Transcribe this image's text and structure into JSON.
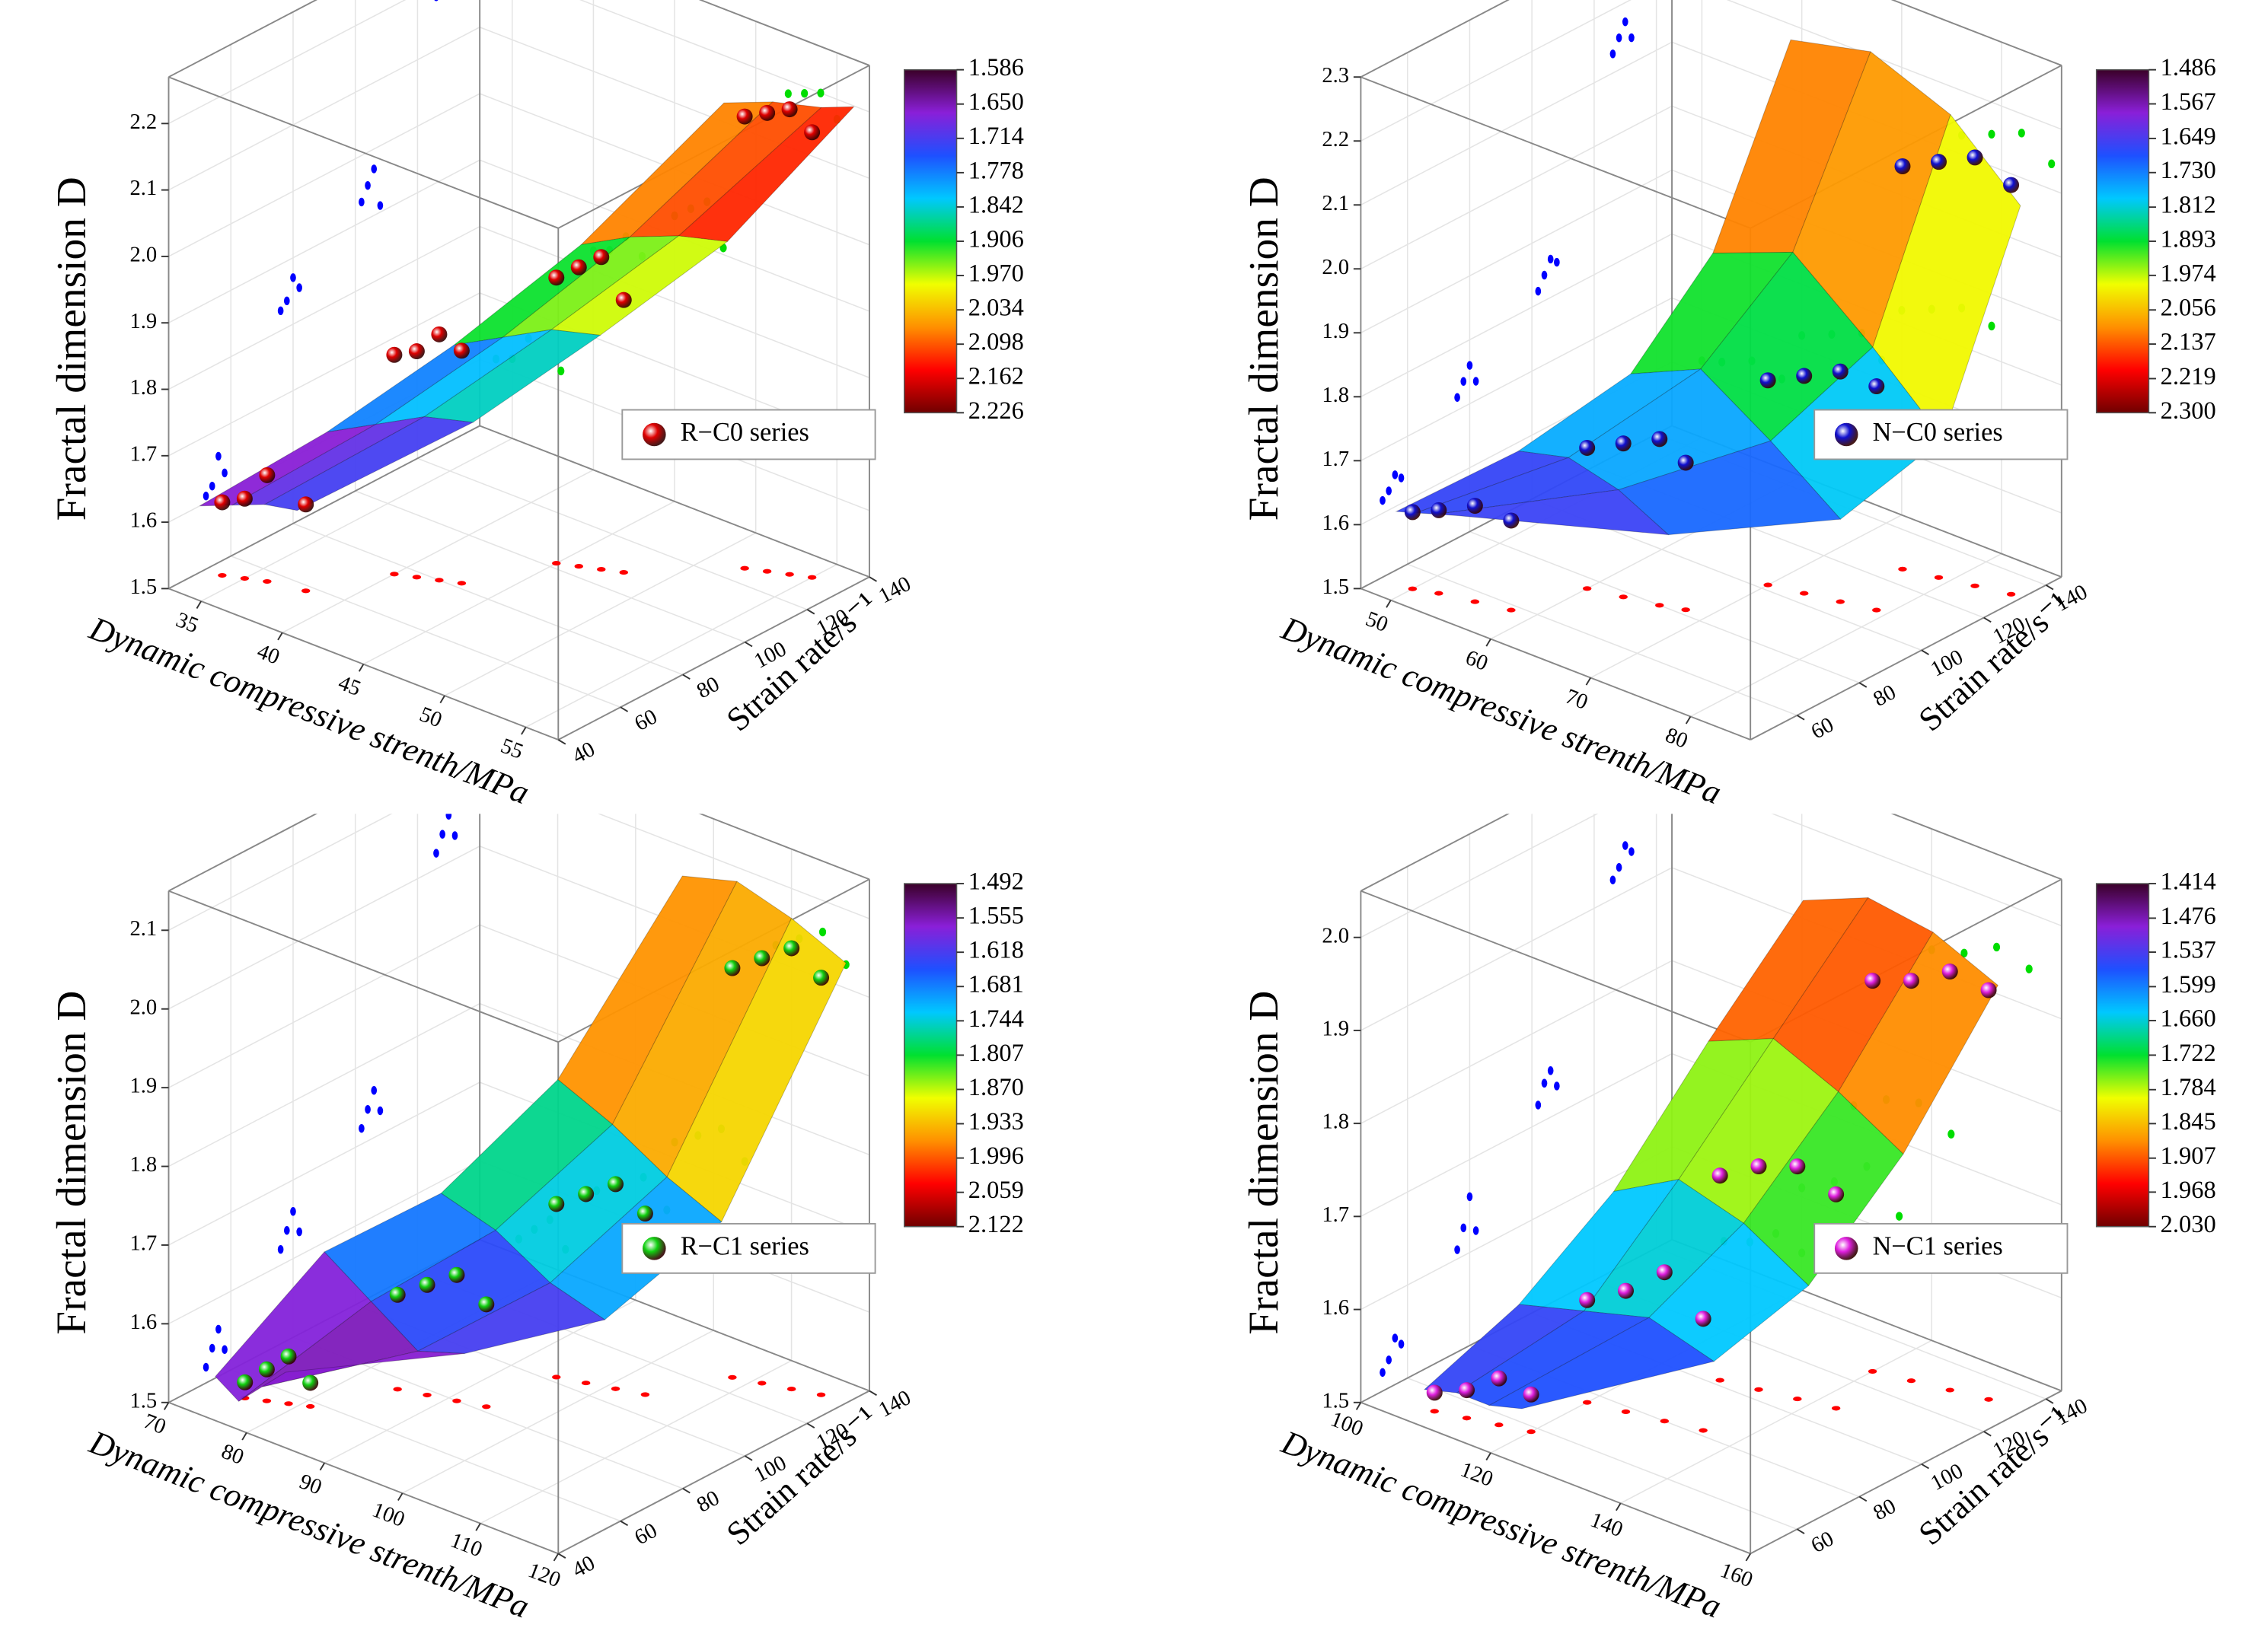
{
  "chart_data": [
    {
      "type": "surface3d",
      "zlabel": "Fractal dimension D",
      "xlabel": "Dynamic compressive strenth/MPa",
      "ylabel": "Strain rate/s⁻¹",
      "xlim": [
        33,
        57
      ],
      "ylim": [
        40,
        140
      ],
      "zlim": [
        1.5,
        2.27
      ],
      "xticks": [
        35,
        40,
        45,
        50,
        55
      ],
      "yticks": [
        40,
        60,
        80,
        100,
        120,
        140
      ],
      "zticks": [
        1.5,
        1.6,
        1.7,
        1.8,
        1.9,
        {
          "value": 2,
          "label": "2.0"
        },
        2.1,
        2.2
      ],
      "colorbar_ticks": [
        1.586,
        {
          "value": 1.65,
          "label": "1.650"
        },
        1.714,
        1.778,
        1.842,
        1.906,
        {
          "value": 1.97,
          "label": "1.970"
        },
        2.034,
        2.098,
        2.162,
        2.226
      ],
      "colormap": [
        "#3a0028",
        "#8a1fd8",
        "#1e50ff",
        "#00c8ff",
        "#00e030",
        "#f0ff00",
        "#ff9000",
        "#ff0000",
        "#700000"
      ],
      "grid": true,
      "legend": "right",
      "projection_colors": {
        "floor": "#ff0000",
        "left": "#0000ff",
        "right": "#00dd00"
      },
      "series": [
        {
          "name": "R−C0 series",
          "color": "#e00000",
          "x": [
            34,
            35,
            36,
            38,
            40,
            41,
            42,
            43,
            45,
            46,
            47,
            48,
            52,
            53,
            54,
            55
          ],
          "y": [
            52,
            54,
            56,
            58,
            76,
            78,
            80,
            82,
            102,
            104,
            106,
            108,
            126,
            128,
            130,
            132
          ],
          "z": [
            1.61,
            1.62,
            1.66,
            1.63,
            1.83,
            1.84,
            1.87,
            1.85,
            1.93,
            1.95,
            1.97,
            1.91,
            2.18,
            2.19,
            2.2,
            2.17
          ]
        }
      ],
      "surface": {
        "y": [
          50,
          70,
          90,
          110,
          135
        ],
        "x": [
          [
            33,
            35,
            37,
            39
          ],
          [
            37,
            40,
            43,
            46
          ],
          [
            41,
            44,
            47,
            50
          ],
          [
            45,
            48,
            51,
            54
          ],
          [
            49,
            52,
            55,
            57
          ]
        ],
        "z": [
          [
            1.6,
            1.62,
            1.64,
            1.65
          ],
          [
            1.7,
            1.74,
            1.78,
            1.8
          ],
          [
            1.82,
            1.86,
            1.9,
            1.92
          ],
          [
            1.96,
            2.0,
            2.03,
            2.05
          ],
          [
            2.15,
            2.18,
            2.2,
            2.22
          ]
        ]
      }
    },
    {
      "type": "surface3d",
      "zlabel": "Fractal dimension D",
      "xlabel": "Dynamic compressive strenth/MPa",
      "ylabel": "Strain rate/s⁻¹",
      "xlim": [
        47,
        86
      ],
      "ylim": [
        45,
        145
      ],
      "zlim": [
        1.5,
        2.3
      ],
      "xticks": [
        50,
        60,
        70,
        80
      ],
      "yticks": [
        60,
        80,
        100,
        120,
        140
      ],
      "zticks": [
        1.5,
        1.6,
        1.7,
        1.8,
        1.9,
        {
          "value": 2,
          "label": "2.0"
        },
        2.1,
        2.2,
        2.3
      ],
      "colorbar_ticks": [
        1.486,
        1.567,
        1.649,
        {
          "value": 1.73,
          "label": "1.730"
        },
        1.812,
        1.893,
        1.974,
        2.056,
        2.137,
        2.219,
        {
          "value": 2.3,
          "label": "2.300"
        }
      ],
      "colormap": [
        "#3a0028",
        "#8a1fd8",
        "#1e50ff",
        "#00c8ff",
        "#00e030",
        "#f0ff00",
        "#ff9000",
        "#ff0000",
        "#700000"
      ],
      "grid": true,
      "legend": "right",
      "projection_colors": {
        "floor": "#ff0000",
        "left": "#0000ff",
        "right": "#00dd00"
      },
      "series": [
        {
          "name": "N−C0 series",
          "color": "#1010d0",
          "x": [
            50,
            52,
            55,
            58,
            60,
            63,
            66,
            68,
            70,
            73,
            76,
            79,
            76,
            79,
            82,
            85
          ],
          "y": [
            52,
            54,
            56,
            58,
            76,
            78,
            80,
            82,
            102,
            104,
            106,
            108,
            126,
            128,
            130,
            132
          ],
          "z": [
            1.62,
            1.63,
            1.65,
            1.64,
            1.72,
            1.74,
            1.76,
            1.73,
            1.82,
            1.84,
            1.86,
            1.85,
            2.13,
            2.15,
            2.17,
            2.14
          ]
        }
      ],
      "surface": {
        "y": [
          50,
          70,
          90,
          110,
          135
        ],
        "x": [
          [
            49,
            51,
            53,
            55
          ],
          [
            55,
            60,
            65,
            70
          ],
          [
            60,
            67,
            74,
            81
          ],
          [
            62,
            70,
            78,
            85
          ],
          [
            62,
            70,
            78,
            85
          ]
        ],
        "z": [
          [
            1.62,
            1.63,
            1.64,
            1.65
          ],
          [
            1.7,
            1.72,
            1.7,
            1.66
          ],
          [
            1.8,
            1.85,
            1.78,
            1.7
          ],
          [
            1.95,
            2.0,
            1.9,
            1.8
          ],
          [
            2.22,
            2.25,
            2.2,
            2.1
          ]
        ]
      }
    },
    {
      "type": "surface3d",
      "zlabel": "Fractal dimension D",
      "xlabel": "Dynamic compressive strenth/MPa",
      "ylabel": "Strain rate/s⁻¹",
      "xlim": [
        70,
        120
      ],
      "ylim": [
        40,
        140
      ],
      "zlim": [
        1.5,
        2.15
      ],
      "xticks": [
        70,
        80,
        90,
        100,
        110,
        120
      ],
      "yticks": [
        40,
        60,
        80,
        100,
        120,
        140
      ],
      "zticks": [
        1.5,
        1.6,
        1.7,
        1.8,
        1.9,
        {
          "value": 2,
          "label": "2.0"
        },
        2.1
      ],
      "colorbar_ticks": [
        1.492,
        1.555,
        1.618,
        1.681,
        1.744,
        1.807,
        {
          "value": 1.87,
          "label": "1.870"
        },
        1.933,
        1.996,
        2.059,
        2.122
      ],
      "colormap": [
        "#3a0028",
        "#8a1fd8",
        "#1e50ff",
        "#00c8ff",
        "#00e030",
        "#f0ff00",
        "#ff9000",
        "#ff0000",
        "#700000"
      ],
      "grid": true,
      "legend": "right",
      "projection_colors": {
        "floor": "#ff0000",
        "left": "#0000ff",
        "right": "#00dd00"
      },
      "series": [
        {
          "name": "R−C1 series",
          "color": "#10d010",
          "x": [
            75,
            77,
            79,
            81,
            85,
            88,
            91,
            94,
            95,
            98,
            101,
            104,
            108,
            111,
            114,
            117
          ],
          "y": [
            52,
            54,
            56,
            58,
            76,
            78,
            80,
            82,
            102,
            104,
            106,
            108,
            126,
            128,
            130,
            132
          ],
          "z": [
            1.52,
            1.54,
            1.56,
            1.53,
            1.62,
            1.64,
            1.66,
            1.63,
            1.72,
            1.74,
            1.76,
            1.73,
            2.02,
            2.04,
            2.06,
            2.03
          ]
        }
      ],
      "surface": {
        "y": [
          50,
          70,
          90,
          110,
          135
        ],
        "x": [
          [
            72,
            75,
            78,
            81
          ],
          [
            78,
            84,
            90,
            96
          ],
          [
            85,
            92,
            99,
            106
          ],
          [
            92,
            99,
            106,
            113
          ],
          [
            98,
            105,
            112,
            119
          ]
        ],
        "z": [
          [
            1.52,
            1.5,
            1.53,
            1.56
          ],
          [
            1.66,
            1.62,
            1.58,
            1.6
          ],
          [
            1.72,
            1.7,
            1.66,
            1.64
          ],
          [
            1.85,
            1.82,
            1.78,
            1.75
          ],
          [
            2.08,
            2.1,
            2.08,
            2.05
          ]
        ]
      }
    },
    {
      "type": "surface3d",
      "zlabel": "Fractal dimension D",
      "xlabel": "Dynamic compressive strenth/MPa",
      "ylabel": "Strain rate/s⁻¹",
      "xlim": [
        100,
        160
      ],
      "ylim": [
        45,
        145
      ],
      "zlim": [
        1.5,
        2.05
      ],
      "xticks": [
        100,
        120,
        140,
        160
      ],
      "yticks": [
        60,
        80,
        100,
        120,
        140
      ],
      "zticks": [
        1.5,
        1.6,
        1.7,
        1.8,
        1.9,
        {
          "value": 2,
          "label": "2.0"
        }
      ],
      "colorbar_ticks": [
        1.414,
        1.476,
        1.537,
        1.599,
        {
          "value": 1.66,
          "label": "1.660"
        },
        1.722,
        1.784,
        1.845,
        1.907,
        1.968,
        {
          "value": 2.03,
          "label": "2.030"
        }
      ],
      "colormap": [
        "#3a0028",
        "#8a1fd8",
        "#1e50ff",
        "#00c8ff",
        "#00e030",
        "#f0ff00",
        "#ff9000",
        "#ff0000",
        "#700000"
      ],
      "grid": true,
      "legend": "right",
      "projection_colors": {
        "floor": "#ff0000",
        "left": "#0000ff",
        "right": "#00dd00"
      },
      "series": [
        {
          "name": "N−C1 series",
          "color": "#e020e0",
          "x": [
            108,
            112,
            116,
            120,
            120,
            125,
            130,
            135,
            128,
            133,
            138,
            143,
            140,
            145,
            150,
            155
          ],
          "y": [
            52,
            54,
            56,
            58,
            76,
            78,
            80,
            82,
            102,
            104,
            106,
            108,
            126,
            128,
            130,
            132
          ],
          "z": [
            1.52,
            1.53,
            1.55,
            1.54,
            1.61,
            1.63,
            1.66,
            1.62,
            1.72,
            1.74,
            1.75,
            1.73,
            1.92,
            1.93,
            1.95,
            1.94
          ]
        }
      ],
      "surface": {
        "y": [
          55,
          75,
          95,
          115,
          135
        ],
        "x": [
          [
            105,
            110,
            115,
            120
          ],
          [
            110,
            120,
            130,
            140
          ],
          [
            115,
            125,
            135,
            145
          ],
          [
            120,
            130,
            140,
            150
          ],
          [
            125,
            135,
            145,
            155
          ]
        ],
        "z": [
          [
            1.51,
            1.52,
            1.52,
            1.53
          ],
          [
            1.58,
            1.6,
            1.62,
            1.6
          ],
          [
            1.68,
            1.72,
            1.7,
            1.66
          ],
          [
            1.82,
            1.85,
            1.82,
            1.78
          ],
          [
            1.95,
            1.98,
            1.97,
            1.94
          ]
        ]
      }
    }
  ]
}
